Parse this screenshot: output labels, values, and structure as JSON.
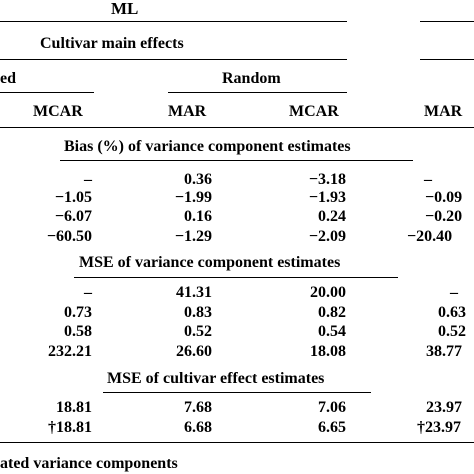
{
  "header": {
    "method": "ML",
    "subtitle": "Cultivar main effects",
    "group_left": "ed",
    "group_random": "Random",
    "col_left_mcar": "MCAR",
    "col_random_mar": "MAR",
    "col_random_mcar": "MCAR",
    "col_right_mar": "MAR"
  },
  "sections": [
    {
      "title": "Bias (%) of variance component estimates",
      "rows": [
        [
          "–",
          "0.36",
          "−3.18",
          "–"
        ],
        [
          "−1.05",
          "−1.99",
          "−1.93",
          "−0.09"
        ],
        [
          "−6.07",
          "0.16",
          "0.24",
          "−0.20"
        ],
        [
          "−60.50",
          "−1.29",
          "−2.09",
          "−20.40"
        ]
      ]
    },
    {
      "title": "MSE of variance component estimates",
      "rows": [
        [
          "–",
          "41.31",
          "20.00",
          "–"
        ],
        [
          "0.73",
          "0.83",
          "0.82",
          "0.63"
        ],
        [
          "0.58",
          "0.52",
          "0.54",
          "0.52"
        ],
        [
          "232.21",
          "26.60",
          "18.08",
          "38.77"
        ]
      ]
    },
    {
      "title": "MSE of cultivar effect estimates",
      "rows": [
        [
          "18.81",
          "7.68",
          "7.06",
          "23.97"
        ],
        [
          "†18.81",
          "6.68",
          "6.65",
          "†23.97"
        ]
      ]
    }
  ],
  "footer": "ated variance components"
}
